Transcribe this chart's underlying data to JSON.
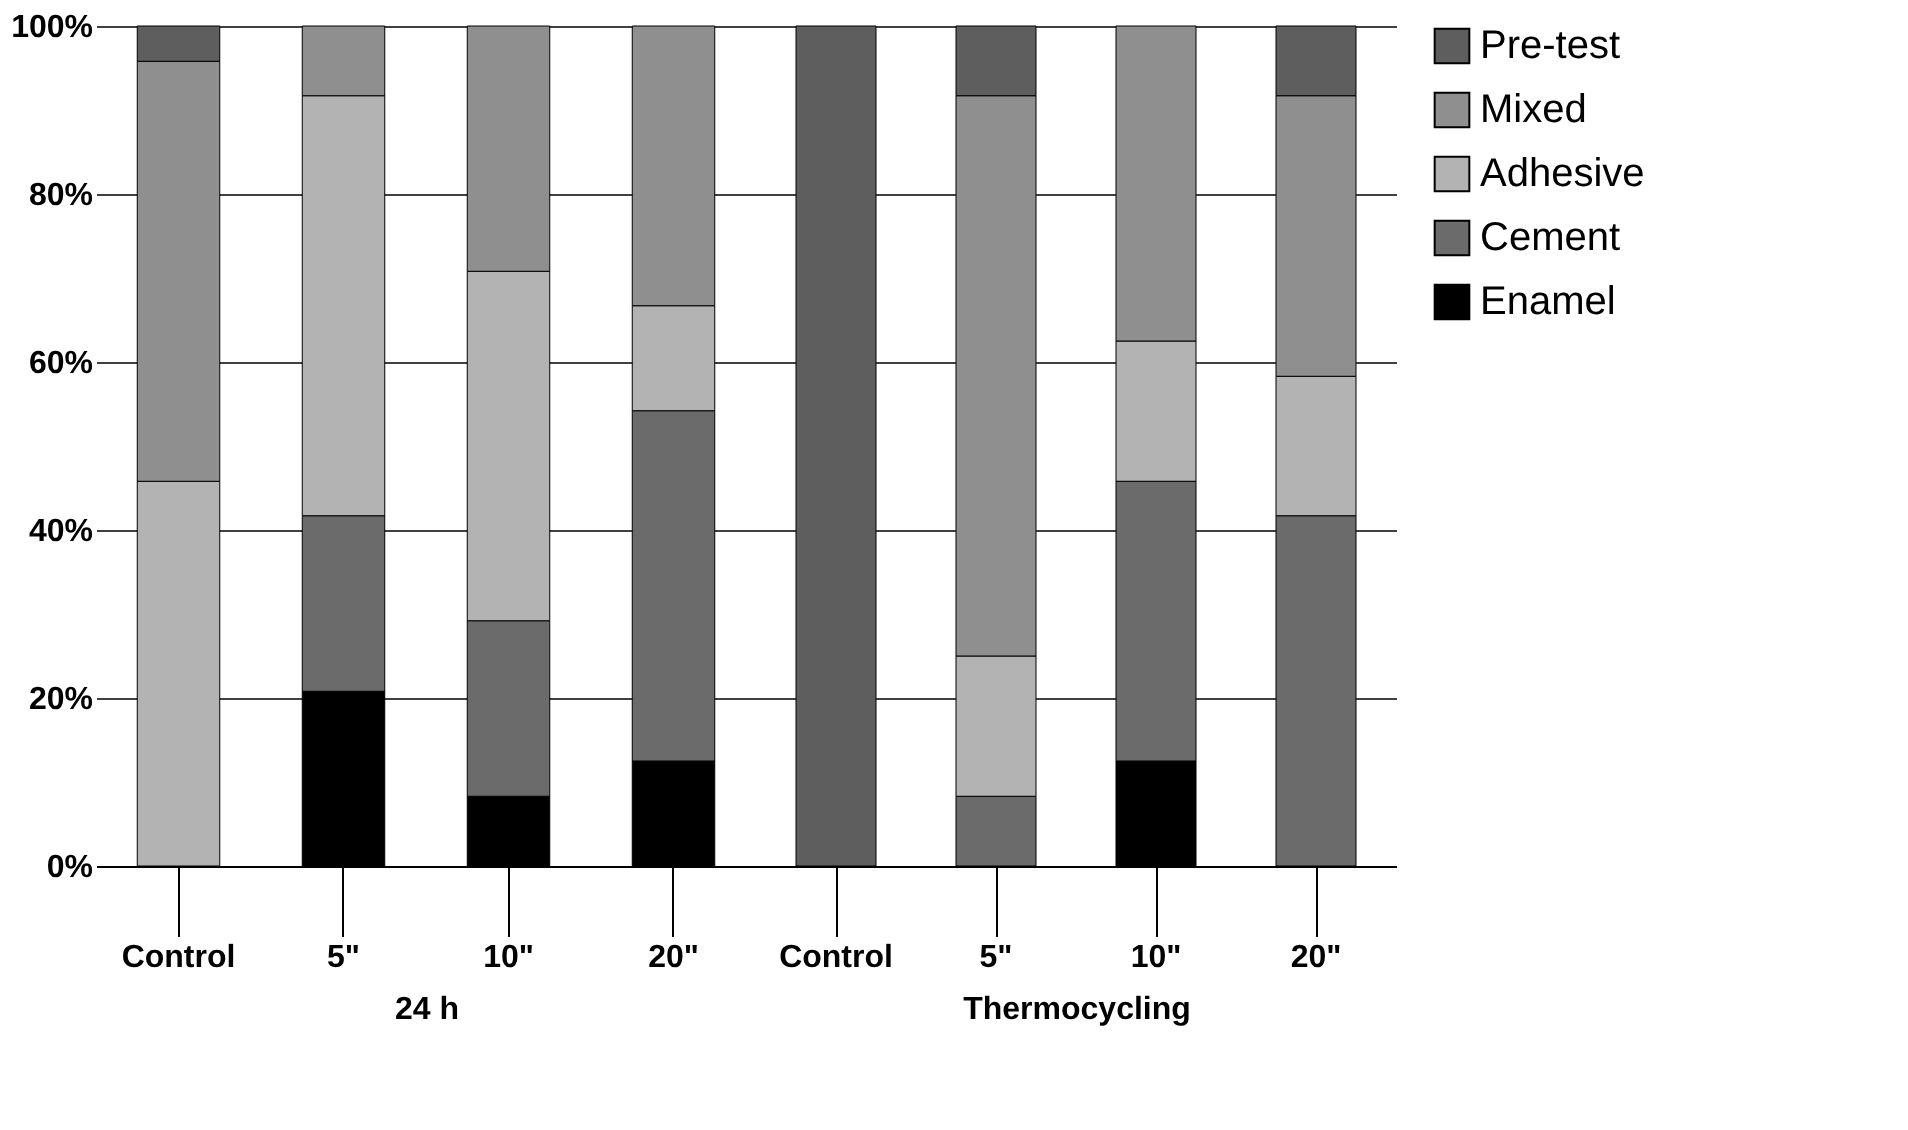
{
  "chart_data": [
    {
      "type": "bar",
      "stacked": true,
      "xlabel": "24 h",
      "categories": [
        "Control",
        "5\"",
        "10\"",
        "20\""
      ],
      "ylim": [
        0,
        100
      ],
      "yticks": [
        {
          "value": 0,
          "label": "0%"
        },
        {
          "value": 20,
          "label": "20%"
        },
        {
          "value": 40,
          "label": "40%"
        },
        {
          "value": 60,
          "label": "60%"
        },
        {
          "value": 80,
          "label": "80%"
        },
        {
          "value": 100,
          "label": "100%"
        }
      ],
      "grid": "y",
      "series": [
        {
          "color": "#000000",
          "values": [
            null,
            20.8,
            8.3,
            12.5
          ]
        },
        {
          "color": "#6b6b6b",
          "values": [
            null,
            20.9,
            20.9,
            41.7
          ]
        },
        {
          "color": "#b3b3b3",
          "values": [
            45.8,
            50,
            41.6,
            12.5
          ]
        },
        {
          "color": "#8f8f8f",
          "values": [
            50,
            8.3,
            29.2,
            33.3
          ]
        },
        {
          "color": "#5e5e5e",
          "values": [
            4.2,
            null,
            null,
            null
          ]
        }
      ]
    },
    {
      "type": "bar",
      "stacked": true,
      "xlabel": "Thermocycling",
      "categories": [
        "Control",
        "5\"",
        "10\"",
        "20\""
      ],
      "ylim": [
        0,
        100
      ],
      "yticks": [
        0,
        20,
        40,
        60,
        80,
        100
      ],
      "grid": "y",
      "legend": "right",
      "tick_labels": "x",
      "series": [
        {
          "name": "Enamel",
          "color": "#000000",
          "values": [
            null,
            null,
            12.5,
            null
          ]
        },
        {
          "name": "Cement",
          "color": "#6b6b6b",
          "values": [
            null,
            8.3,
            33.3,
            41.7
          ]
        },
        {
          "name": "Adhesive",
          "color": "#b3b3b3",
          "values": [
            null,
            16.7,
            16.7,
            16.6
          ]
        },
        {
          "name": "Mixed",
          "color": "#8f8f8f",
          "values": [
            null,
            66.7,
            37.5,
            33.4
          ]
        },
        {
          "name": "Pre-test",
          "color": "#5e5e5e",
          "values": [
            100,
            8.3,
            null,
            8.3
          ]
        }
      ]
    }
  ]
}
